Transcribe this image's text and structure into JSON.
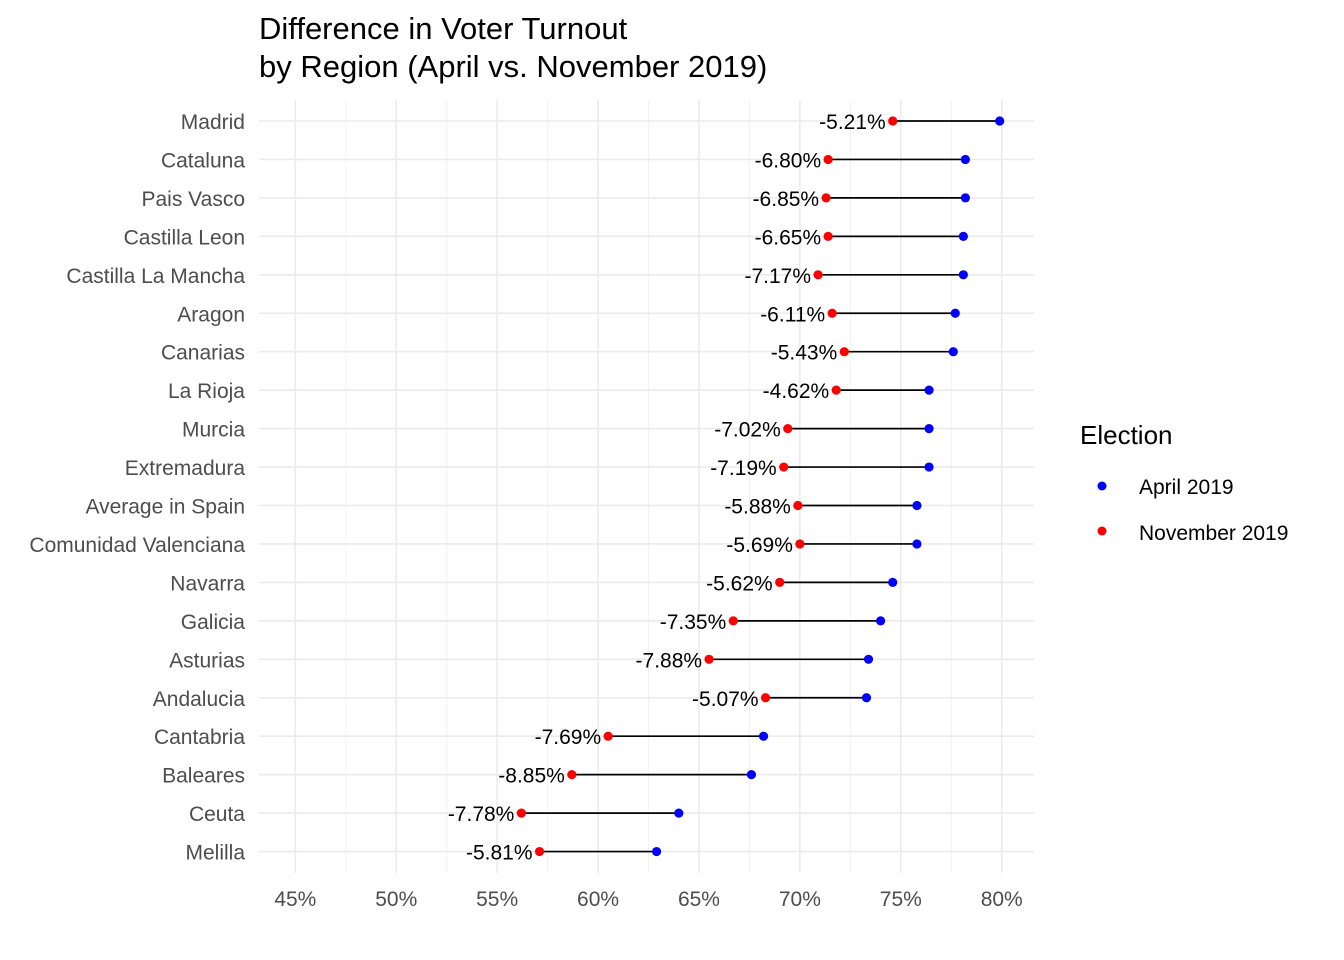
{
  "chart_data": {
    "type": "dumbbell",
    "title_line1": "Difference in Voter Turnout",
    "title_line2": "by Region (April vs. November 2019)",
    "xlabel": "",
    "ylabel": "",
    "xlim": [
      43.2,
      81.6
    ],
    "x_ticks": [
      "45%",
      "50%",
      "55%",
      "60%",
      "65%",
      "70%",
      "75%",
      "80%"
    ],
    "x_tick_values": [
      45,
      50,
      55,
      60,
      65,
      70,
      75,
      80
    ],
    "grid": true,
    "legend": {
      "title": "Election",
      "position": "right",
      "entries": [
        {
          "label": "April 2019",
          "color": "#0000FF"
        },
        {
          "label": "November 2019",
          "color": "#FF0000"
        }
      ]
    },
    "series": [
      {
        "name": "April 2019",
        "color": "#0000FF"
      },
      {
        "name": "November 2019",
        "color": "#FF0000"
      }
    ],
    "rows": [
      {
        "region": "Madrid",
        "april": 79.9,
        "november": 74.6,
        "label": "-5.21%"
      },
      {
        "region": "Cataluna",
        "april": 78.2,
        "november": 71.4,
        "label": "-6.80%"
      },
      {
        "region": "Pais Vasco",
        "april": 78.2,
        "november": 71.3,
        "label": "-6.85%"
      },
      {
        "region": "Castilla Leon",
        "april": 78.1,
        "november": 71.4,
        "label": "-6.65%"
      },
      {
        "region": "Castilla La Mancha",
        "april": 78.1,
        "november": 70.9,
        "label": "-7.17%"
      },
      {
        "region": "Aragon",
        "april": 77.7,
        "november": 71.6,
        "label": "-6.11%"
      },
      {
        "region": "Canarias",
        "april": 77.6,
        "november": 72.2,
        "label": "-5.43%"
      },
      {
        "region": "La Rioja",
        "april": 76.4,
        "november": 71.8,
        "label": "-4.62%"
      },
      {
        "region": "Murcia",
        "april": 76.4,
        "november": 69.4,
        "label": "-7.02%"
      },
      {
        "region": "Extremadura",
        "april": 76.4,
        "november": 69.2,
        "label": "-7.19%"
      },
      {
        "region": "Average in Spain",
        "april": 75.8,
        "november": 69.9,
        "label": "-5.88%"
      },
      {
        "region": "Comunidad Valenciana",
        "april": 75.8,
        "november": 70.0,
        "label": "-5.69%"
      },
      {
        "region": "Navarra",
        "april": 74.6,
        "november": 69.0,
        "label": "-5.62%"
      },
      {
        "region": "Galicia",
        "april": 74.0,
        "november": 66.7,
        "label": "-7.35%"
      },
      {
        "region": "Asturias",
        "april": 73.4,
        "november": 65.5,
        "label": "-7.88%"
      },
      {
        "region": "Andalucia",
        "april": 73.3,
        "november": 68.3,
        "label": "-5.07%"
      },
      {
        "region": "Cantabria",
        "april": 68.2,
        "november": 60.5,
        "label": "-7.69%"
      },
      {
        "region": "Baleares",
        "april": 67.6,
        "november": 58.7,
        "label": "-8.85%"
      },
      {
        "region": "Ceuta",
        "april": 64.0,
        "november": 56.2,
        "label": "-7.78%"
      },
      {
        "region": "Melilla",
        "april": 62.9,
        "november": 57.1,
        "label": "-5.81%"
      }
    ]
  }
}
